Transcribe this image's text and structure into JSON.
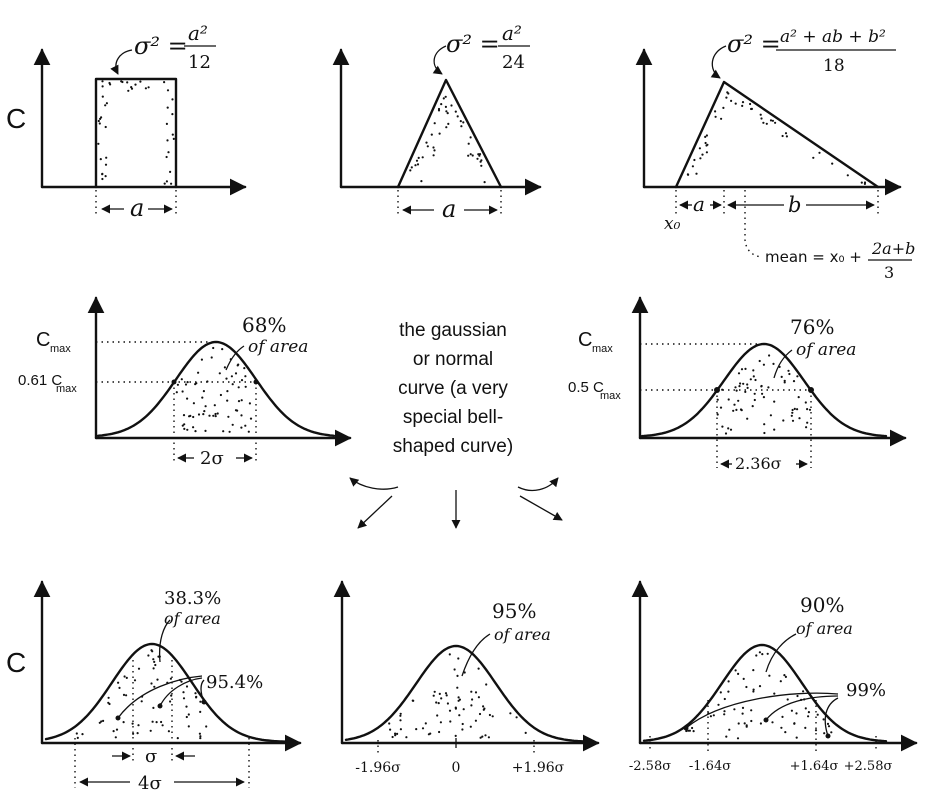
{
  "axis_label": "C",
  "panels": {
    "rect": {
      "variance": {
        "lhs": "σ² =",
        "num": "a²",
        "den": "12"
      },
      "width_label": "a"
    },
    "tri": {
      "variance": {
        "lhs": "σ² =",
        "num": "a²",
        "den": "24"
      },
      "width_label": "a"
    },
    "skew": {
      "variance": {
        "lhs": "σ² =",
        "num": "a² + ab + b²",
        "den": "18"
      },
      "x0_label": "x₀",
      "a_label": "a",
      "b_label": "b",
      "mean": {
        "lhs": "mean = x₀ +",
        "num": "2a+b",
        "den": "3"
      }
    },
    "gauss_left": {
      "cmax": "C",
      "cmax_sub": "max",
      "level": "0.61 C",
      "level_sub": "max",
      "pct": "68%",
      "pct_sub": "of area",
      "width": "2σ"
    },
    "gauss_right": {
      "cmax": "C",
      "cmax_sub": "max",
      "level": "0.5 C",
      "level_sub": "max",
      "pct": "76%",
      "pct_sub": "of area",
      "width": "2.36σ"
    },
    "caption": [
      "the gaussian",
      "or normal",
      "curve (a very",
      "special bell-",
      "shaped curve)"
    ],
    "bottom_left": {
      "pct1": "38.3%",
      "pct1_sub": "of area",
      "pct2": "95.4%",
      "sigma": "σ",
      "four_sigma": "4σ"
    },
    "bottom_mid": {
      "pct": "95%",
      "pct_sub": "of area",
      "ticks": [
        "-1.96σ",
        "0",
        "+1.96σ"
      ]
    },
    "bottom_right": {
      "pct1": "90%",
      "pct1_sub": "of area",
      "pct2": "99%",
      "ticks": [
        "-2.58σ",
        "-1.64σ",
        "+1.64σ",
        "+2.58σ"
      ]
    }
  }
}
